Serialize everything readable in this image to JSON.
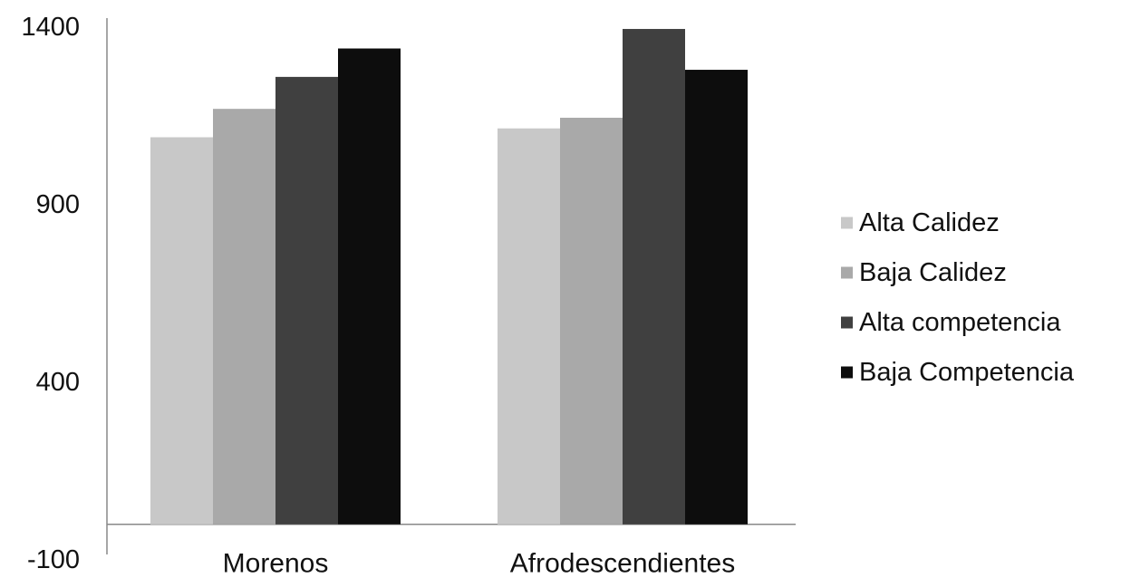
{
  "chart_data": {
    "type": "bar",
    "title": "",
    "xlabel": "",
    "ylabel": "",
    "categories": [
      "Morenos",
      "Afrodescendientes"
    ],
    "series": [
      {
        "name": "Alta Calidez",
        "values": [
          1090,
          1115
        ],
        "color": "#c8c8c8"
      },
      {
        "name": "Baja Calidez",
        "values": [
          1170,
          1145
        ],
        "color": "#a9a9a9"
      },
      {
        "name": "Alta competencia",
        "values": [
          1260,
          1395
        ],
        "color": "#404040"
      },
      {
        "name": "Baja Competencia",
        "values": [
          1340,
          1280
        ],
        "color": "#0d0d0d"
      }
    ],
    "ylim": [
      -100,
      1400
    ],
    "yticks": [
      "1400",
      "900",
      "400",
      "-100"
    ],
    "ytick_values": [
      1400,
      900,
      400,
      -100
    ],
    "baseline": 0,
    "grid": false,
    "legend": {
      "position": "right"
    }
  }
}
